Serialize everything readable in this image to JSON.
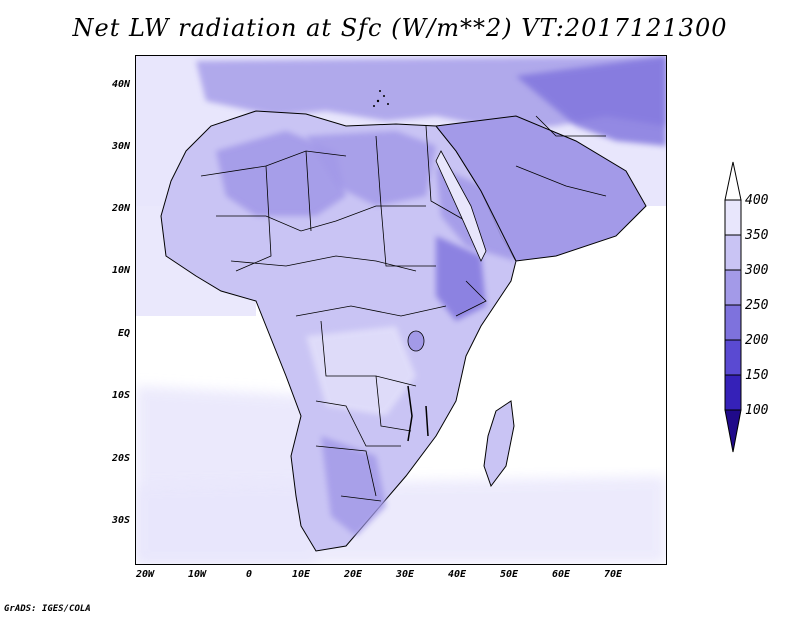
{
  "title": "Net LW radiation at Sfc (W/m**2) VT:2017121300",
  "credit": "GrADS: IGES/COLA",
  "latitude_labels": [
    "40N",
    "30N",
    "20N",
    "10N",
    "EQ",
    "10S",
    "20S",
    "30S"
  ],
  "longitude_labels": [
    "20W",
    "10W",
    "0",
    "10E",
    "20E",
    "30E",
    "40E",
    "50E",
    "60E",
    "70E"
  ],
  "colorbar": {
    "labels": [
      "400",
      "350",
      "300",
      "250",
      "200",
      "150",
      "100"
    ],
    "colors": [
      "#ffffff",
      "#e8e6fc",
      "#c9c4f4",
      "#a39ae8",
      "#7e72dd",
      "#5a4ad2",
      "#3521b8",
      "#200a8a"
    ]
  }
}
